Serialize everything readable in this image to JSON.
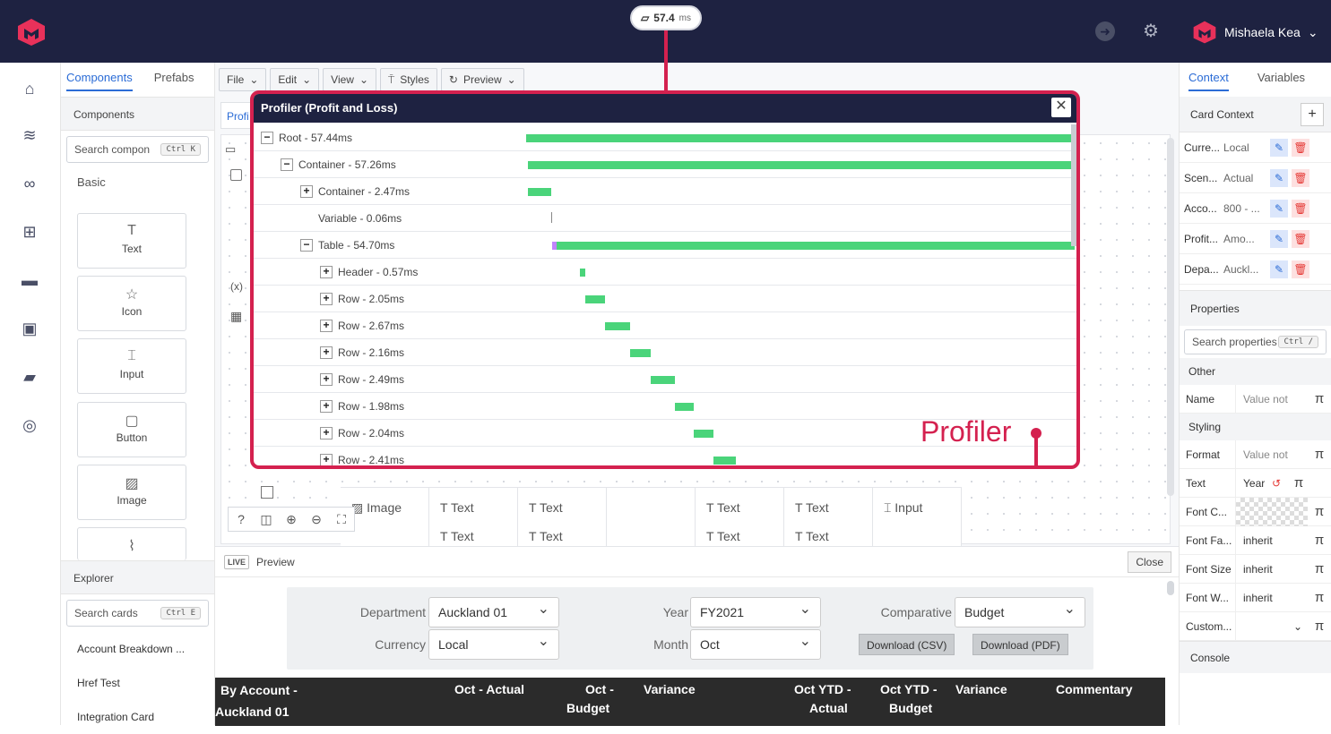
{
  "header": {
    "timing_value": "57.4",
    "timing_unit": "ms",
    "user_name": "Mishaela Kea"
  },
  "left_panel": {
    "tabs": [
      "Components",
      "Prefabs"
    ],
    "section_title": "Components",
    "search_placeholder": "Search compon",
    "search_shortcut": "Ctrl K",
    "group": "Basic",
    "tiles": [
      {
        "label": "Text",
        "icon": "T"
      },
      {
        "label": "Icon",
        "icon": "☆"
      },
      {
        "label": "Input",
        "icon": "⌶"
      },
      {
        "label": "Button",
        "icon": "▢"
      },
      {
        "label": "Image",
        "icon": "▨"
      }
    ],
    "explorer_title": "Explorer",
    "explorer_search": "Search cards",
    "explorer_shortcut": "Ctrl E",
    "explorer_items": [
      "Account Breakdown ...",
      "Href Test",
      "Integration Card"
    ]
  },
  "toolbar": {
    "file": "File",
    "edit": "Edit",
    "view": "View",
    "styles": "Styles",
    "preview": "Preview",
    "tab_stub": "Profi"
  },
  "canvas_cells": [
    "Image",
    "Text",
    "Text",
    "",
    "Text",
    "Text",
    "Input"
  ],
  "canvas_cells_row2": [
    "",
    "Text",
    "Text",
    "",
    "Text",
    "Text",
    ""
  ],
  "profiler": {
    "title": "Profiler (Profit and Loss)",
    "rows": [
      {
        "label": "Root - 57.44ms",
        "toggle": "−",
        "start": 0.0,
        "duration": 57.44
      },
      {
        "label": "Container - 57.26ms",
        "toggle": "−",
        "start": 0.18,
        "duration": 57.26
      },
      {
        "label": "Container - 2.47ms",
        "toggle": "+",
        "start": 0.18,
        "duration": 2.47
      },
      {
        "label": "Variable - 0.06ms",
        "toggle": "",
        "start": 2.65,
        "duration": 0.06
      },
      {
        "label": "Table - 54.70ms",
        "toggle": "−",
        "start": 2.71,
        "duration": 54.7
      },
      {
        "label": "Header - 0.57ms",
        "toggle": "+",
        "start": 5.6,
        "duration": 0.57
      },
      {
        "label": "Row - 2.05ms",
        "toggle": "+",
        "start": 6.2,
        "duration": 2.05
      },
      {
        "label": "Row - 2.67ms",
        "toggle": "+",
        "start": 8.25,
        "duration": 2.67
      },
      {
        "label": "Row - 2.16ms",
        "toggle": "+",
        "start": 10.92,
        "duration": 2.16
      },
      {
        "label": "Row - 2.49ms",
        "toggle": "+",
        "start": 13.08,
        "duration": 2.49
      },
      {
        "label": "Row - 1.98ms",
        "toggle": "+",
        "start": 15.57,
        "duration": 1.98
      },
      {
        "label": "Row - 2.04ms",
        "toggle": "+",
        "start": 17.55,
        "duration": 2.04
      },
      {
        "label": "Row - 2.41ms",
        "toggle": "+",
        "start": 19.59,
        "duration": 2.41
      }
    ],
    "callout": "Profiler"
  },
  "preview": {
    "live": "LIVE",
    "label": "Preview",
    "close": "Close",
    "department_label": "Department",
    "department": "Auckland 01",
    "year_label": "Year",
    "year": "FY2021",
    "comparative_label": "Comparative",
    "comparative": "Budget",
    "currency_label": "Currency",
    "currency": "Local",
    "month_label": "Month",
    "month": "Oct",
    "download_csv": "Download (CSV)",
    "download_pdf": "Download (PDF)",
    "table_headers": {
      "account_line1": "By Account -",
      "account_line2": "Auckland 01",
      "oct_actual": "Oct - Actual",
      "oct_budget_line1": "Oct -",
      "oct_budget_line2": "Budget",
      "variance": "Variance",
      "ytd_actual_line1": "Oct YTD -",
      "ytd_actual_line2": "Actual",
      "ytd_budget_line1": "Oct YTD -",
      "ytd_budget_line2": "Budget",
      "variance2": "Variance",
      "commentary": "Commentary"
    }
  },
  "right_panel": {
    "tabs": [
      "Context",
      "Variables"
    ],
    "card_context": "Card Context",
    "context_rows": [
      {
        "k": "Curre...",
        "v": "Local"
      },
      {
        "k": "Scen...",
        "v": "Actual"
      },
      {
        "k": "Acco...",
        "v": "800 - ..."
      },
      {
        "k": "Profit...",
        "v": "Amo..."
      },
      {
        "k": "Depa...",
        "v": "Auckl..."
      }
    ],
    "properties_title": "Properties",
    "search_properties": "Search properties",
    "search_shortcut": "Ctrl /",
    "group_other": "Other",
    "name_label": "Name",
    "name_placeholder": "Value not",
    "group_styling": "Styling",
    "format_label": "Format",
    "format_placeholder": "Value not",
    "text_label": "Text",
    "text_value": "Year",
    "font_color_label": "Font C...",
    "font_family_label": "Font Fa...",
    "font_family_value": "inherit",
    "font_size_label": "Font Size",
    "font_size_value": "inherit",
    "font_weight_label": "Font W...",
    "font_weight_value": "inherit",
    "custom_label": "Custom...",
    "console": "Console"
  }
}
